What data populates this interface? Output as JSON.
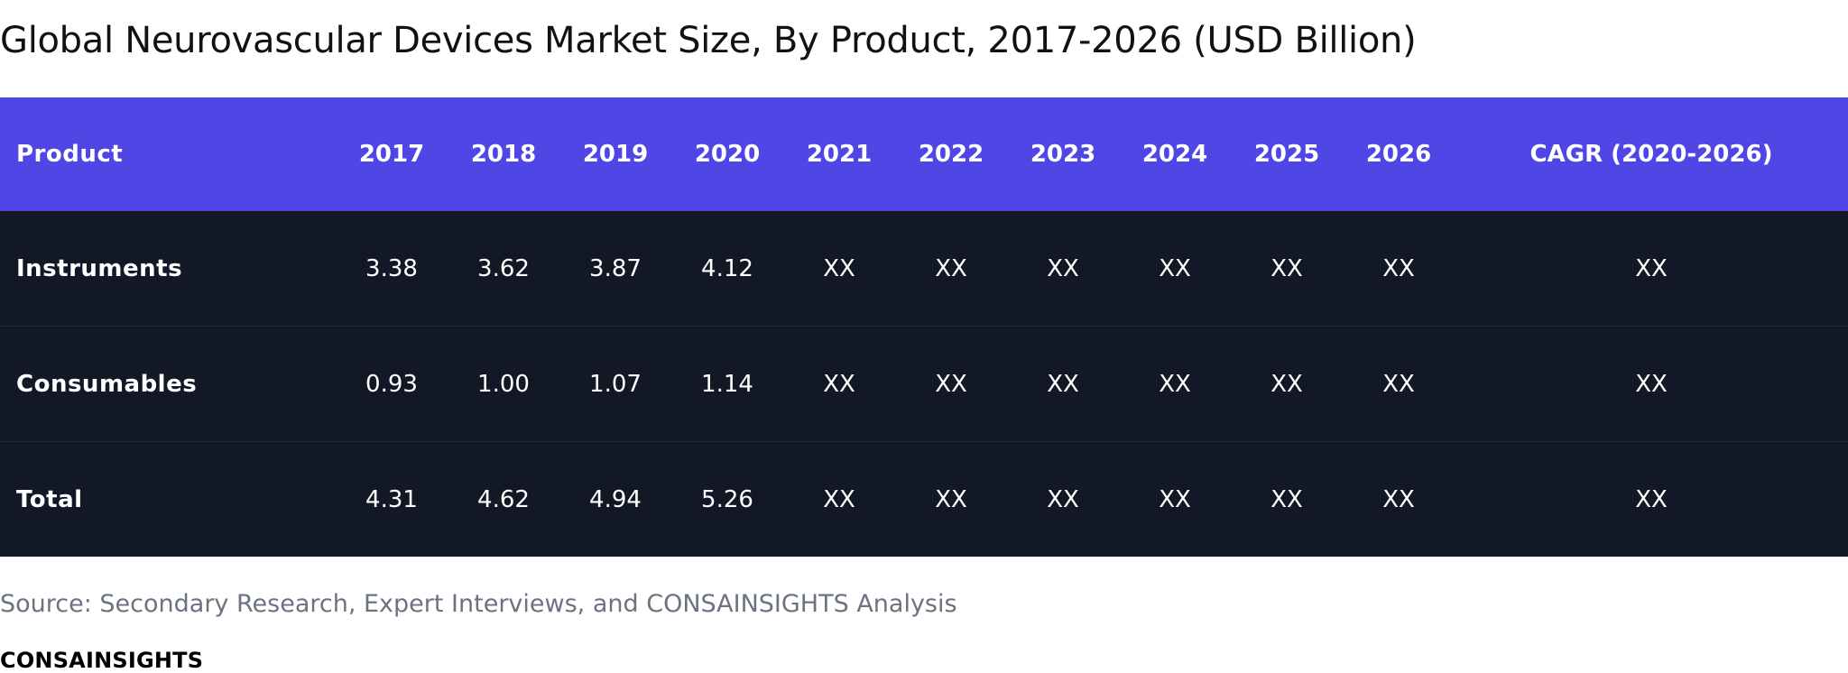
{
  "title": "Global Neurovascular Devices Market Size, By Product, 2017-2026 (USD Billion)",
  "colors": {
    "header_bg": "#5046e5",
    "body_bg": "#131827"
  },
  "chart_data": {
    "type": "table",
    "title": "Global Neurovascular Devices Market Size, By Product, 2017-2026 (USD Billion)",
    "columns": [
      "Product",
      "2017",
      "2018",
      "2019",
      "2020",
      "2021",
      "2022",
      "2023",
      "2024",
      "2025",
      "2026",
      "CAGR (2020-2026)"
    ],
    "rows": [
      {
        "product": "Instruments",
        "values": [
          "3.38",
          "3.62",
          "3.87",
          "4.12",
          "XX",
          "XX",
          "XX",
          "XX",
          "XX",
          "XX"
        ],
        "cagr": "XX"
      },
      {
        "product": "Consumables",
        "values": [
          "0.93",
          "1.00",
          "1.07",
          "1.14",
          "XX",
          "XX",
          "XX",
          "XX",
          "XX",
          "XX"
        ],
        "cagr": "XX"
      },
      {
        "product": "Total",
        "values": [
          "4.31",
          "4.62",
          "4.94",
          "5.26",
          "XX",
          "XX",
          "XX",
          "XX",
          "XX",
          "XX"
        ],
        "cagr": "XX"
      }
    ]
  },
  "source": "Source: Secondary Research, Expert Interviews, and CONSAINSIGHTS Analysis",
  "brand": "CONSAINSIGHTS"
}
